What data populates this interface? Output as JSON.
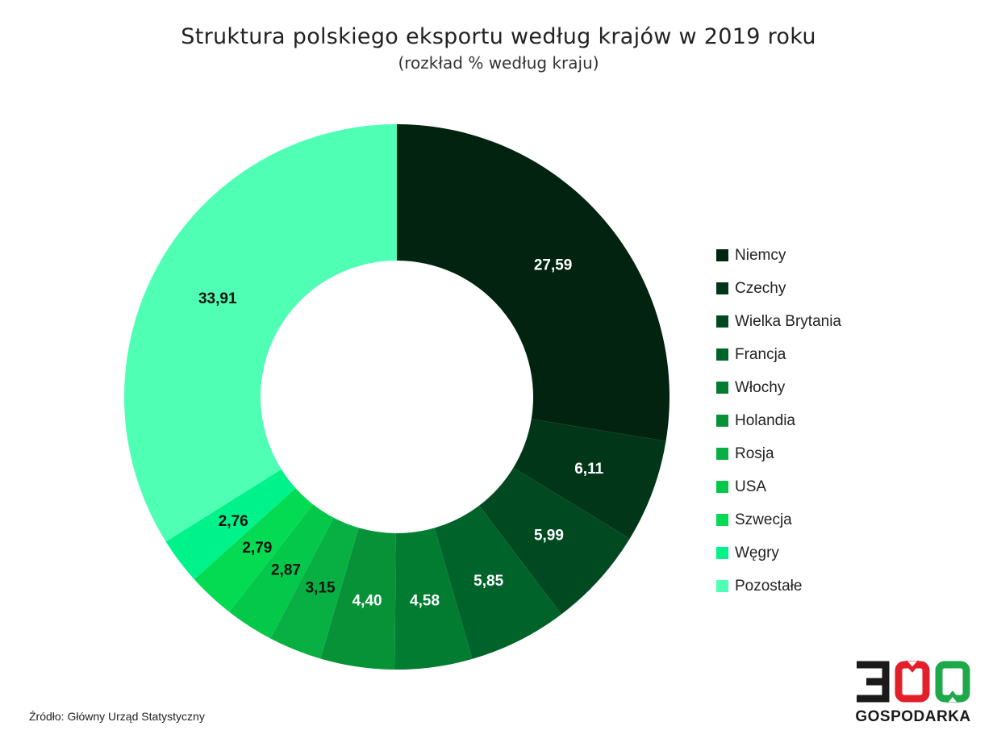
{
  "chart_data": {
    "type": "pie",
    "title": "Struktura polskiego eksportu według krajów w 2019 roku",
    "subtitle": "(rozkład % według kraju)",
    "donut": true,
    "legend_position": "right",
    "categories": [
      "Niemcy",
      "Czechy",
      "Wielka Brytania",
      "Francja",
      "Włochy",
      "Holandia",
      "Rosja",
      "USA",
      "Szwecja",
      "Węgry",
      "Pozostałe"
    ],
    "values": [
      27.59,
      6.11,
      5.99,
      5.85,
      4.58,
      4.4,
      3.15,
      2.87,
      2.79,
      2.76,
      33.91
    ],
    "value_labels": [
      "27,59",
      "6,11",
      "5,99",
      "5,85",
      "4,58",
      "4,40",
      "3,15",
      "2,87",
      "2,79",
      "2,76",
      "33,91"
    ],
    "colors": [
      "#01230f",
      "#023618",
      "#014a21",
      "#00632a",
      "#017c31",
      "#079238",
      "#08b043",
      "#03c84a",
      "#04db52",
      "#00f38b",
      "#4fffb4"
    ],
    "label_colors": [
      "#ffffff",
      "#ffffff",
      "#ffffff",
      "#ffffff",
      "#ffffff",
      "#ffffff",
      "#111111",
      "#111111",
      "#111111",
      "#111111",
      "#111111"
    ]
  },
  "source": "Źródło: Główny Urząd Statystyczny",
  "logo": {
    "name": "300 Gospodarka logo",
    "text": "GOSPODARKA",
    "accent_red": "#e3202a",
    "accent_green": "#1ea84a",
    "dark": "#1a1a1a"
  }
}
